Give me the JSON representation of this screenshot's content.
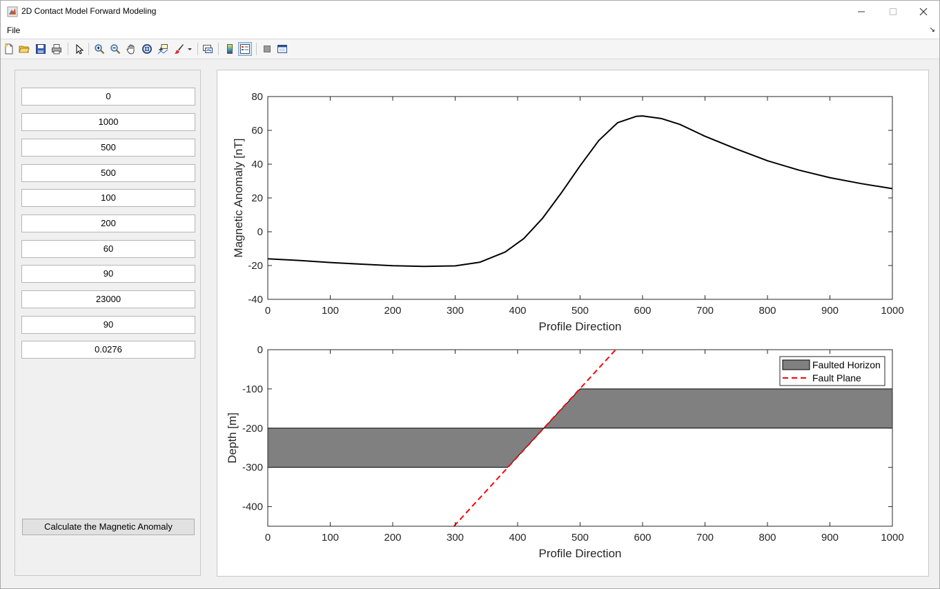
{
  "window": {
    "title": "2D Contact Model Forward Modeling"
  },
  "menu": {
    "file": "File"
  },
  "toolbar": {
    "buttons": [
      "new-file-icon",
      "open-folder-icon",
      "save-icon",
      "print-icon",
      "pointer-icon",
      "zoom-in-icon",
      "zoom-out-icon",
      "pan-hand-icon",
      "rotate-3d-icon",
      "data-cursor-icon",
      "brush-icon",
      "link-plot-icon",
      "colorbar-icon",
      "legend-icon",
      "hide-plot-tools-icon",
      "show-plot-tools-icon"
    ]
  },
  "inputs": [
    "0",
    "1000",
    "500",
    "500",
    "100",
    "200",
    "60",
    "90",
    "23000",
    "90",
    "0.0276"
  ],
  "calculate_label": "Calculate the Magnetic Anomaly",
  "chart_data": [
    {
      "type": "line",
      "xlabel": "Profile Direction",
      "ylabel": "Magnetic Anomaly [nT]",
      "xlim": [
        0,
        1000
      ],
      "ylim": [
        -40,
        80
      ],
      "xticks": [
        0,
        100,
        200,
        300,
        400,
        500,
        600,
        700,
        800,
        900,
        1000
      ],
      "yticks": [
        -40,
        -20,
        0,
        20,
        40,
        60,
        80
      ],
      "series": [
        {
          "color": "#000000",
          "x": [
            0,
            50,
            100,
            150,
            200,
            250,
            300,
            340,
            380,
            410,
            440,
            470,
            500,
            530,
            560,
            590,
            600,
            630,
            660,
            700,
            750,
            800,
            850,
            900,
            950,
            1000
          ],
          "y": [
            -16,
            -17,
            -18.2,
            -19.2,
            -20.1,
            -20.5,
            -20.2,
            -18,
            -12,
            -4,
            8,
            23,
            39,
            54,
            64.5,
            68.3,
            68.5,
            67,
            63.5,
            56.5,
            49,
            42,
            36.5,
            32,
            28.5,
            25.5
          ]
        }
      ]
    },
    {
      "type": "area",
      "xlabel": "Profile Direction",
      "ylabel": "Depth [m]",
      "xlim": [
        0,
        1000
      ],
      "ylim": [
        -450,
        0
      ],
      "xticks": [
        0,
        100,
        200,
        300,
        400,
        500,
        600,
        700,
        800,
        900,
        1000
      ],
      "yticks": [
        -400,
        -300,
        -200,
        -100,
        0
      ],
      "legend_position": "top-right",
      "series": [
        {
          "name": "Faulted Horizon",
          "color": "#808080",
          "polygon_x": [
            0,
            384,
            442,
            500,
            1000,
            1000,
            442,
            384,
            0
          ],
          "polygon_y": [
            -200,
            -200,
            -200,
            -100,
            -100,
            -200,
            -200,
            -300,
            -300
          ]
        },
        {
          "name": "Fault Plane",
          "color": "#ff0000",
          "x": [
            298,
            557
          ],
          "y": [
            -450,
            0
          ]
        }
      ]
    }
  ]
}
